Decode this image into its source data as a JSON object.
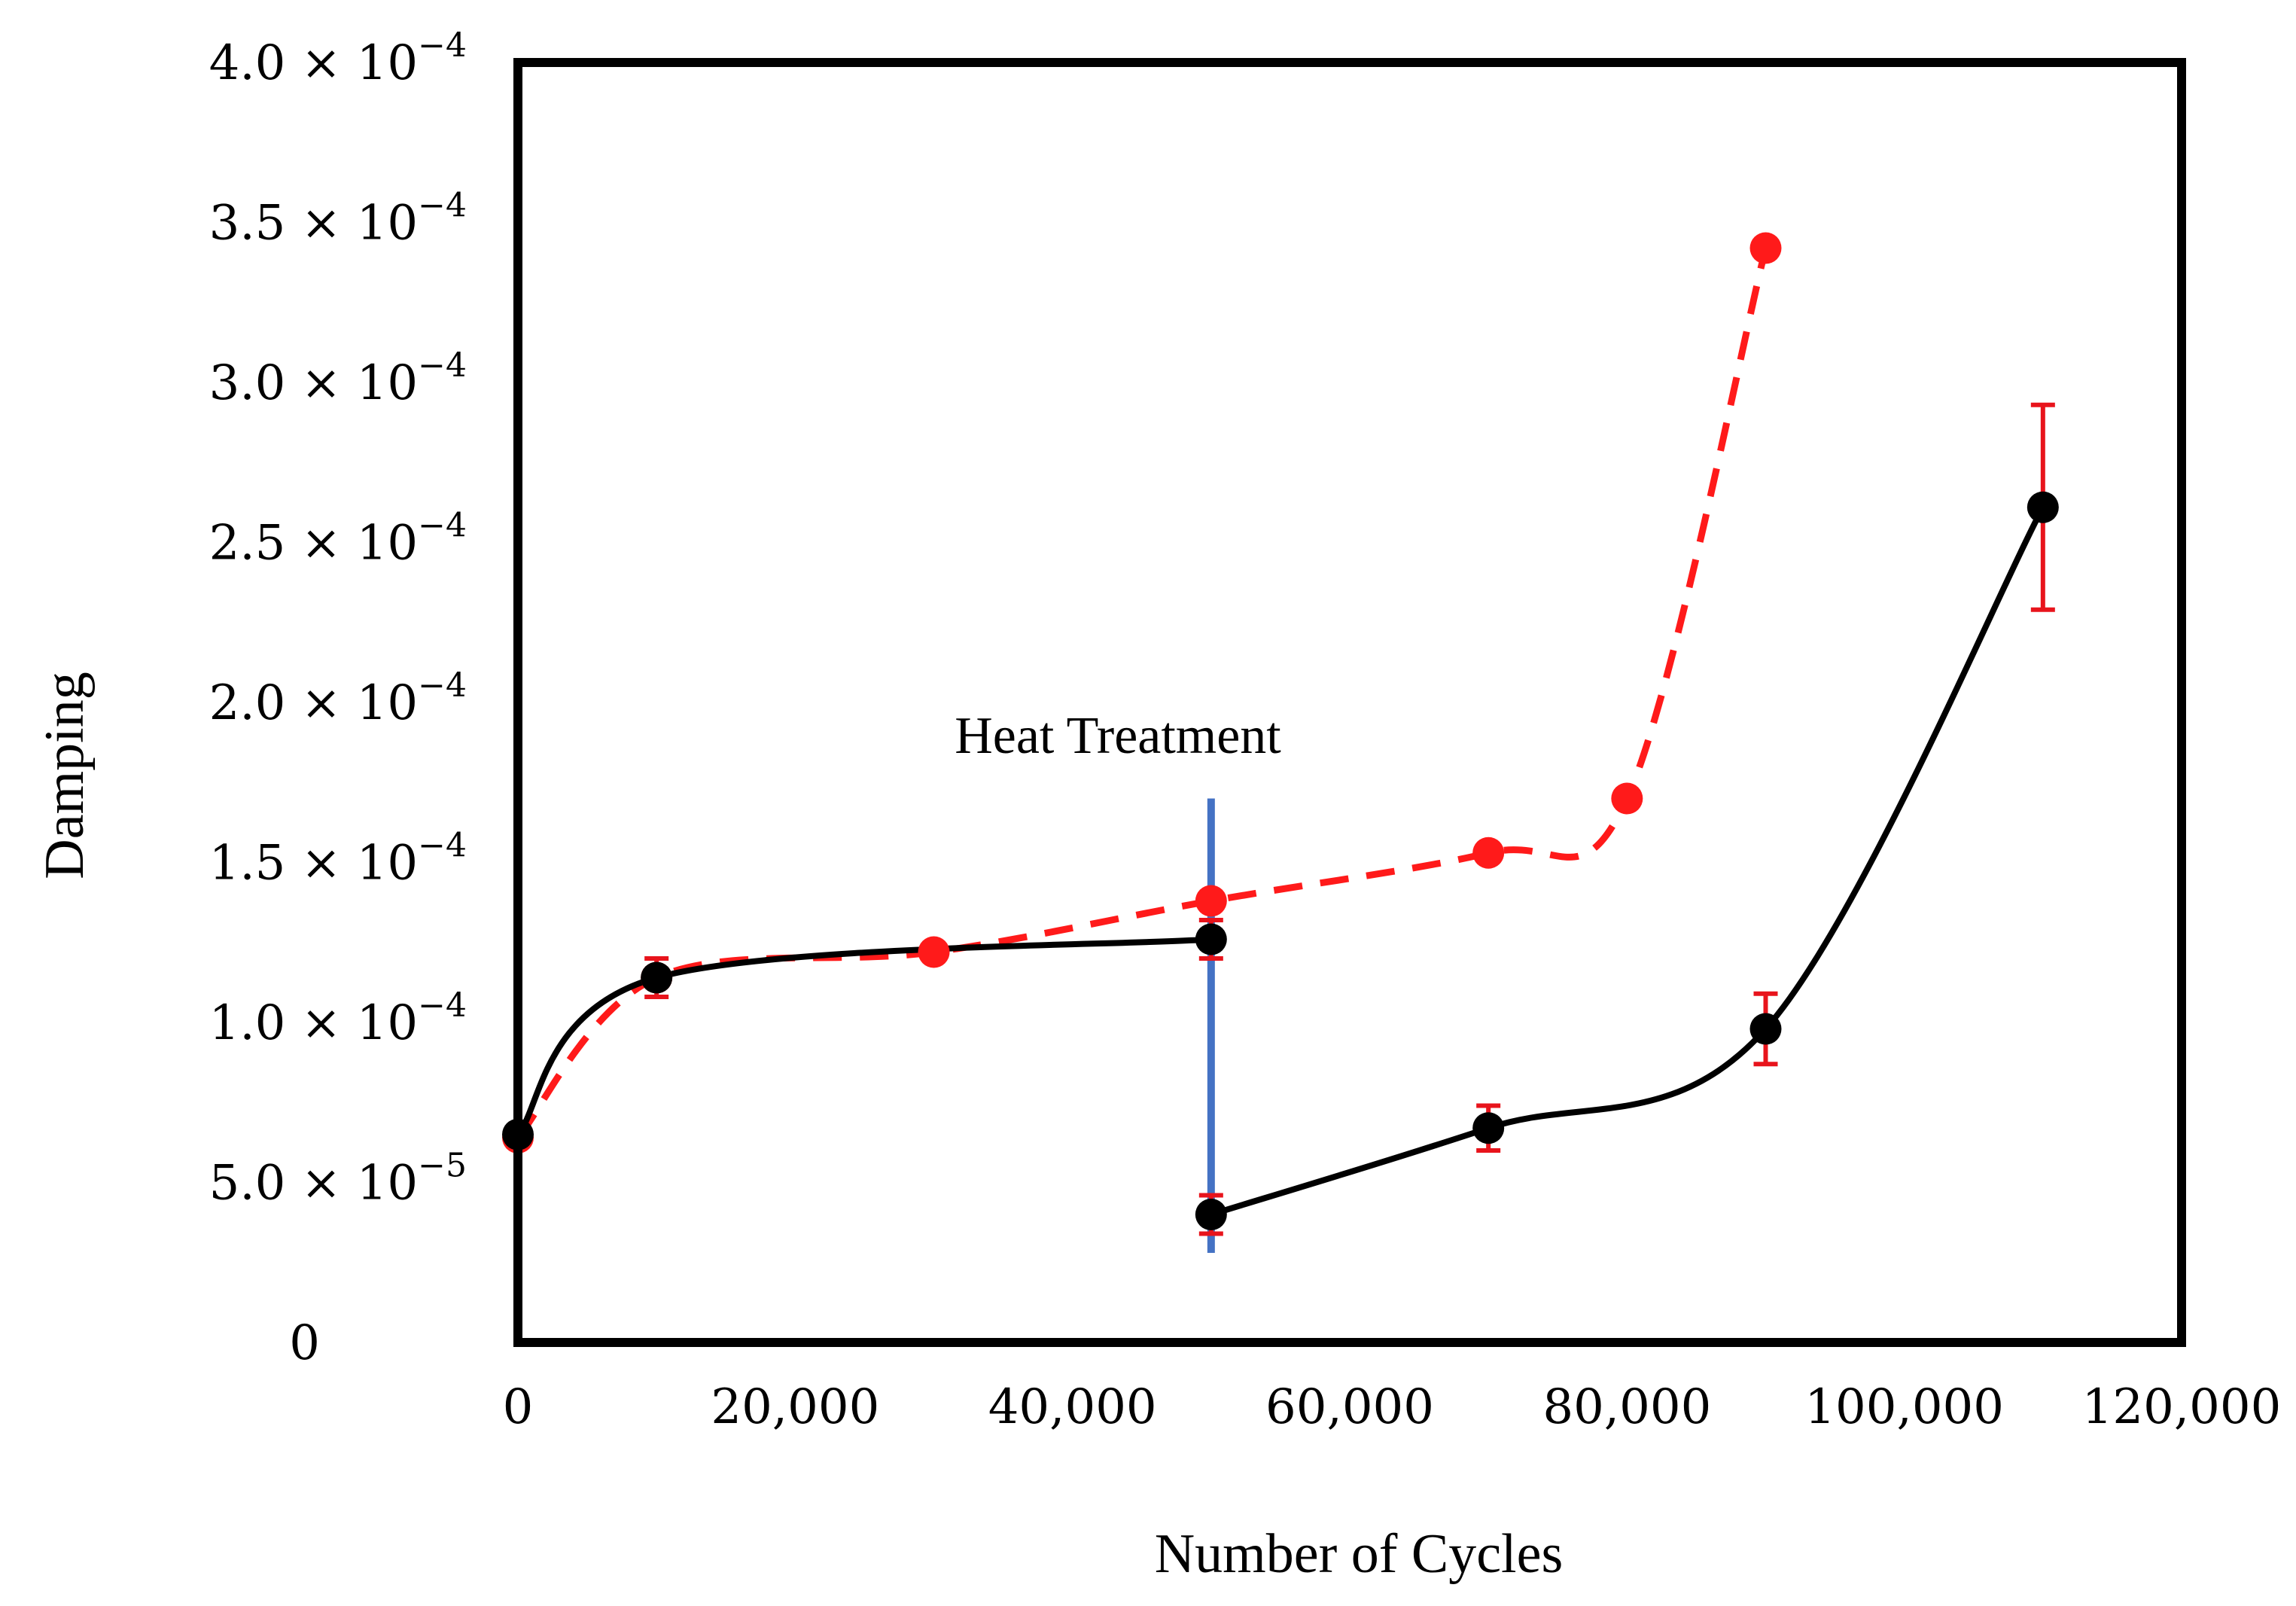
{
  "chart_data": {
    "type": "line",
    "title": "",
    "xlabel": "Number of Cycles",
    "ylabel": "Damping",
    "xlim": [
      0,
      120000
    ],
    "ylim": [
      0,
      0.0004
    ],
    "x_ticks": [
      0,
      20000,
      40000,
      60000,
      80000,
      100000,
      120000
    ],
    "x_tick_labels": [
      "0",
      "20,000",
      "40,000",
      "60,000",
      "80,000",
      "100,000",
      "120,000"
    ],
    "y_ticks": [
      0,
      5e-05,
      0.0001,
      0.00015,
      0.0002,
      0.00025,
      0.0003,
      0.00035,
      0.0004
    ],
    "y_tick_labels": [
      {
        "mantissa": "0",
        "exponent": ""
      },
      {
        "mantissa": "5.0 × 10",
        "exponent": "−5"
      },
      {
        "mantissa": "1.0 × 10",
        "exponent": "−4"
      },
      {
        "mantissa": "1.5 × 10",
        "exponent": "−4"
      },
      {
        "mantissa": "2.0 × 10",
        "exponent": "−4"
      },
      {
        "mantissa": "2.5 × 10",
        "exponent": "−4"
      },
      {
        "mantissa": "3.0 × 10",
        "exponent": "−4"
      },
      {
        "mantissa": "3.5 × 10",
        "exponent": "−4"
      },
      {
        "mantissa": "4.0 × 10",
        "exponent": "−4"
      }
    ],
    "grid": false,
    "series": [
      {
        "name": "red dashed series",
        "color": "#ff1a1a",
        "line_style": "dashed",
        "smooth": true,
        "points": [
          {
            "x": 0,
            "y": 6.4e-05
          },
          {
            "x": 10000,
            "y": 0.000114
          },
          {
            "x": 30000,
            "y": 0.000122
          },
          {
            "x": 50000,
            "y": 0.000138
          },
          {
            "x": 70000,
            "y": 0.000153
          },
          {
            "x": 80000,
            "y": 0.00017
          },
          {
            "x": 90000,
            "y": 0.000342
          }
        ]
      },
      {
        "name": "black series (before heat treatment)",
        "color": "#000000",
        "line_style": "solid",
        "smooth": true,
        "points": [
          {
            "x": 0,
            "y": 6.5e-05
          },
          {
            "x": 10000,
            "y": 0.000114,
            "err": 6e-06
          },
          {
            "x": 50000,
            "y": 0.000126,
            "err": 6e-06
          }
        ]
      },
      {
        "name": "black series (after heat treatment)",
        "color": "#000000",
        "line_style": "solid",
        "smooth": true,
        "points": [
          {
            "x": 50000,
            "y": 4e-05,
            "err": 6e-06
          },
          {
            "x": 70000,
            "y": 6.7e-05,
            "err": 7e-06
          },
          {
            "x": 90000,
            "y": 9.8e-05,
            "err": 1.1e-05
          },
          {
            "x": 110000,
            "y": 0.000261,
            "err": 3.2e-05
          }
        ]
      }
    ],
    "error_bar_color": "#e8141c",
    "annotations": [
      {
        "text": "Heat Treatment",
        "x": 50000,
        "y_from": 2.8e-05,
        "y_to": 0.00017,
        "line_color": "#4472c4"
      }
    ]
  }
}
